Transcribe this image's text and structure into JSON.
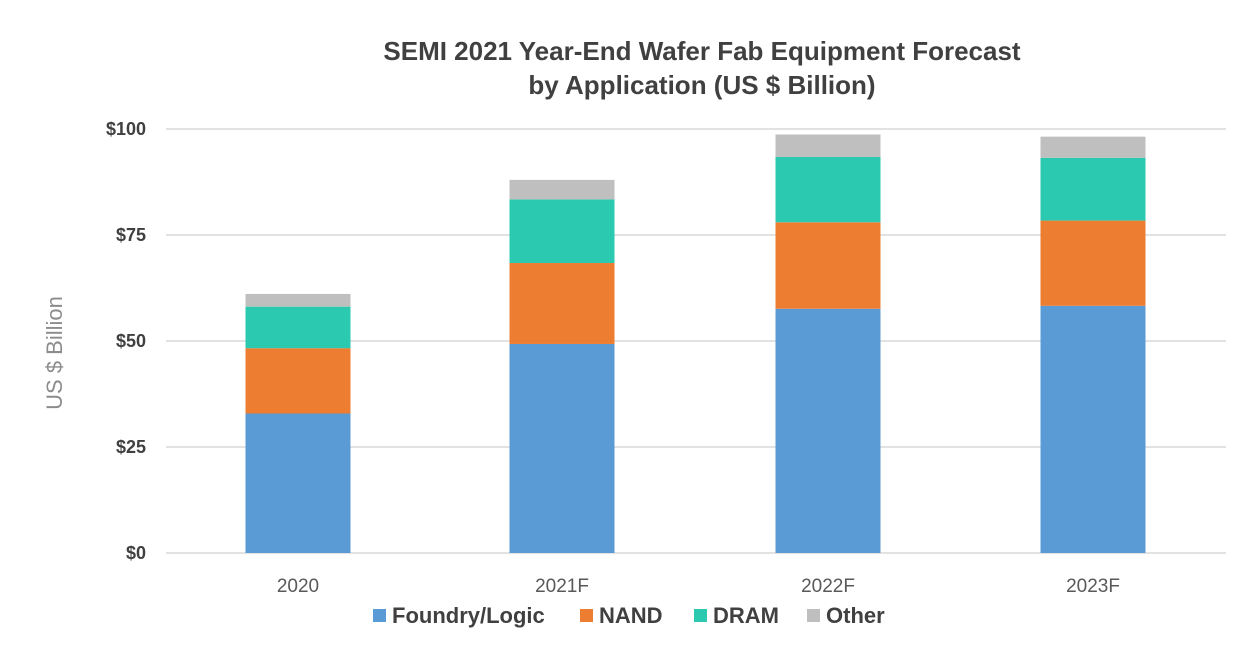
{
  "chart_data": {
    "type": "bar",
    "stacked": true,
    "title": "SEMI 2021 Year-End Wafer Fab Equipment Forecast",
    "subtitle": "by Application (US $ Billion)",
    "xlabel": "",
    "ylabel": "US $ Billion",
    "ylim": [
      0,
      100
    ],
    "yticks": [
      {
        "value": 0,
        "label": "$0"
      },
      {
        "value": 25,
        "label": "$25"
      },
      {
        "value": 50,
        "label": "$50"
      },
      {
        "value": 75,
        "label": "$75"
      },
      {
        "value": 100,
        "label": "$100"
      }
    ],
    "grid": true,
    "legend_position": "bottom",
    "categories": [
      "2020",
      "2021F",
      "2022F",
      "2023F"
    ],
    "series": [
      {
        "name": "Foundry/Logic",
        "color": "#5b9bd5",
        "values": [
          32.9,
          49.3,
          57.6,
          58.3
        ]
      },
      {
        "name": "NAND",
        "color": "#ed7d31",
        "values": [
          15.4,
          19.1,
          20.4,
          20.1
        ]
      },
      {
        "name": "DRAM",
        "color": "#2bc9b0",
        "values": [
          9.8,
          15.0,
          15.4,
          14.8
        ]
      },
      {
        "name": "Other",
        "color": "#bfbfbf",
        "values": [
          3.0,
          4.6,
          5.3,
          5.0
        ]
      }
    ]
  }
}
